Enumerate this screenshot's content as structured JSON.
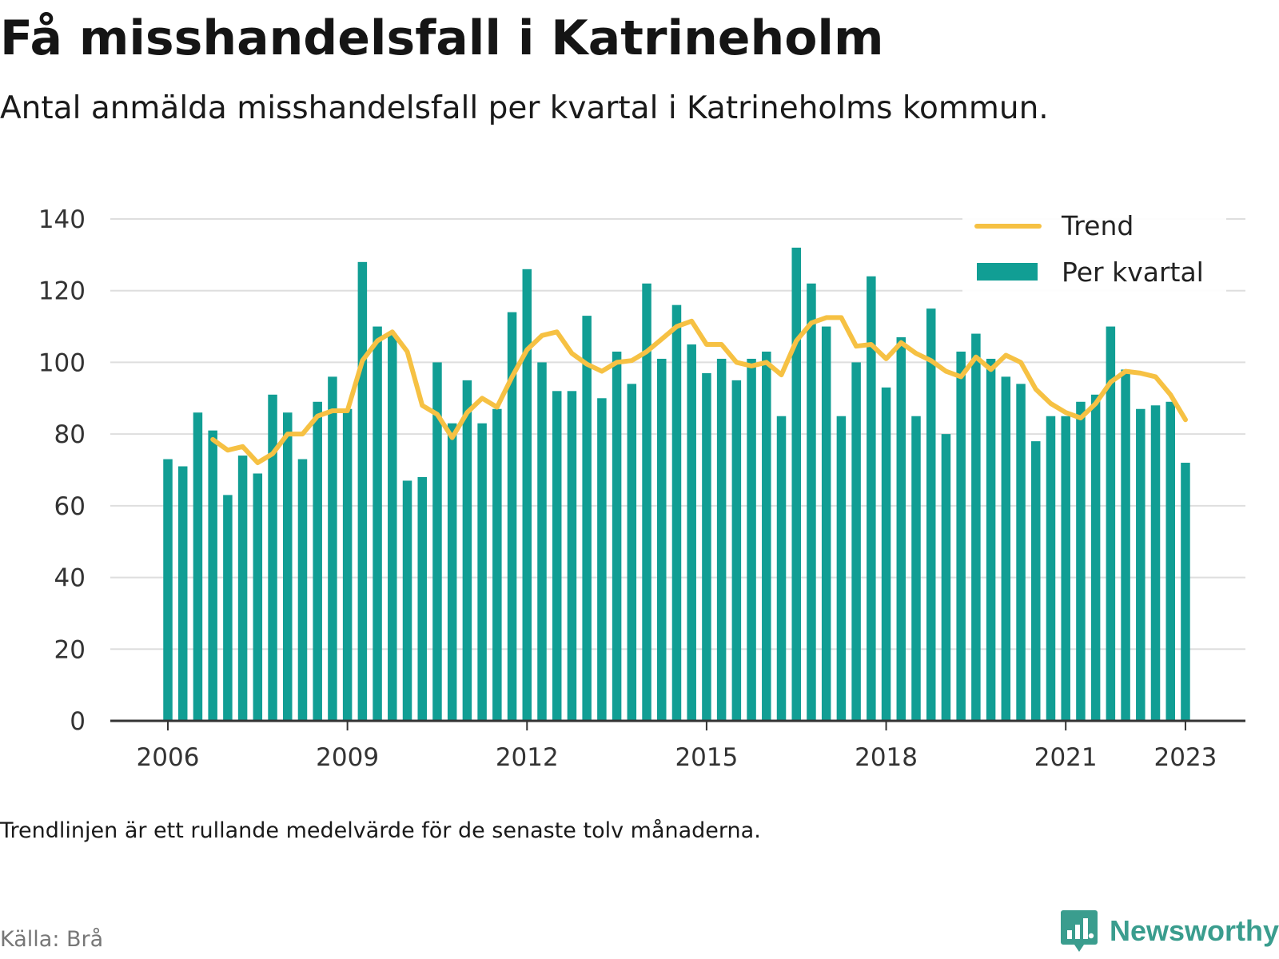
{
  "header": {
    "title": "Få misshandelsfall i Katrineholm",
    "subtitle": "Antal anmälda misshandelsfall per kvartal i Katrineholms kommun."
  },
  "footer": {
    "note": "Trendlinjen är ett rullande medelvärde för de senaste tolv månaderna.",
    "source": "Källa: Brå",
    "brand": "Newsworthy"
  },
  "colors": {
    "bars": "#119e94",
    "trend": "#f6c143",
    "grid": "#dedede",
    "axis": "#333333",
    "brand": "#3a9d8e"
  },
  "chart_data": {
    "type": "bar",
    "title": "",
    "xlabel": "",
    "ylabel": "",
    "ylim": [
      0,
      140
    ],
    "yticks": [
      0,
      20,
      40,
      60,
      80,
      100,
      120,
      140
    ],
    "xtick_labels": [
      "2006",
      "2009",
      "2012",
      "2015",
      "2018",
      "2021",
      "2023"
    ],
    "grid": true,
    "legend_position": "top-right",
    "categories": [
      "2006 Q1",
      "2006 Q2",
      "2006 Q3",
      "2006 Q4",
      "2007 Q1",
      "2007 Q2",
      "2007 Q3",
      "2007 Q4",
      "2008 Q1",
      "2008 Q2",
      "2008 Q3",
      "2008 Q4",
      "2009 Q1",
      "2009 Q2",
      "2009 Q3",
      "2009 Q4",
      "2010 Q1",
      "2010 Q2",
      "2010 Q3",
      "2010 Q4",
      "2011 Q1",
      "2011 Q2",
      "2011 Q3",
      "2011 Q4",
      "2012 Q1",
      "2012 Q2",
      "2012 Q3",
      "2012 Q4",
      "2013 Q1",
      "2013 Q2",
      "2013 Q3",
      "2013 Q4",
      "2014 Q1",
      "2014 Q2",
      "2014 Q3",
      "2014 Q4",
      "2015 Q1",
      "2015 Q2",
      "2015 Q3",
      "2015 Q4",
      "2016 Q1",
      "2016 Q2",
      "2016 Q3",
      "2016 Q4",
      "2017 Q1",
      "2017 Q2",
      "2017 Q3",
      "2017 Q4",
      "2018 Q1",
      "2018 Q2",
      "2018 Q3",
      "2018 Q4",
      "2019 Q1",
      "2019 Q2",
      "2019 Q3",
      "2019 Q4",
      "2020 Q1",
      "2020 Q2",
      "2020 Q3",
      "2020 Q4",
      "2021 Q1",
      "2021 Q2",
      "2021 Q3",
      "2021 Q4",
      "2022 Q1",
      "2022 Q2",
      "2022 Q3",
      "2022 Q4",
      "2023 Q1"
    ],
    "series": [
      {
        "name": "Per kvartal",
        "type": "bar",
        "values": [
          73,
          71,
          86,
          81,
          63,
          74,
          69,
          91,
          86,
          73,
          89,
          96,
          87,
          128,
          110,
          108,
          67,
          68,
          100,
          83,
          95,
          83,
          87,
          114,
          126,
          100,
          92,
          92,
          113,
          90,
          103,
          94,
          122,
          101,
          116,
          105,
          97,
          101,
          95,
          101,
          103,
          85,
          132,
          122,
          110,
          85,
          100,
          124,
          93,
          107,
          85,
          115,
          80,
          103,
          108,
          101,
          96,
          94,
          78,
          85,
          85,
          89,
          91,
          110,
          98,
          87,
          88,
          89,
          72
        ]
      },
      {
        "name": "Trend",
        "type": "line",
        "values": [
          null,
          null,
          null,
          78.5,
          75.5,
          76.5,
          72,
          74.5,
          80,
          80,
          85,
          86.5,
          86.5,
          100.5,
          106,
          108.5,
          103,
          88,
          85.5,
          79,
          86,
          90,
          87.5,
          96,
          103.5,
          107.5,
          108.5,
          102.5,
          99.5,
          97.5,
          100,
          100.5,
          103,
          106.5,
          110,
          111.5,
          105,
          105,
          100,
          99,
          100,
          96.5,
          106,
          111,
          112.5,
          112.5,
          104.5,
          105,
          101,
          105.5,
          102.5,
          100.5,
          97.5,
          96,
          101.5,
          98,
          102,
          100,
          92.5,
          88.5,
          86,
          84.5,
          88.5,
          94.5,
          97.5,
          97,
          96,
          91,
          84
        ]
      }
    ]
  }
}
